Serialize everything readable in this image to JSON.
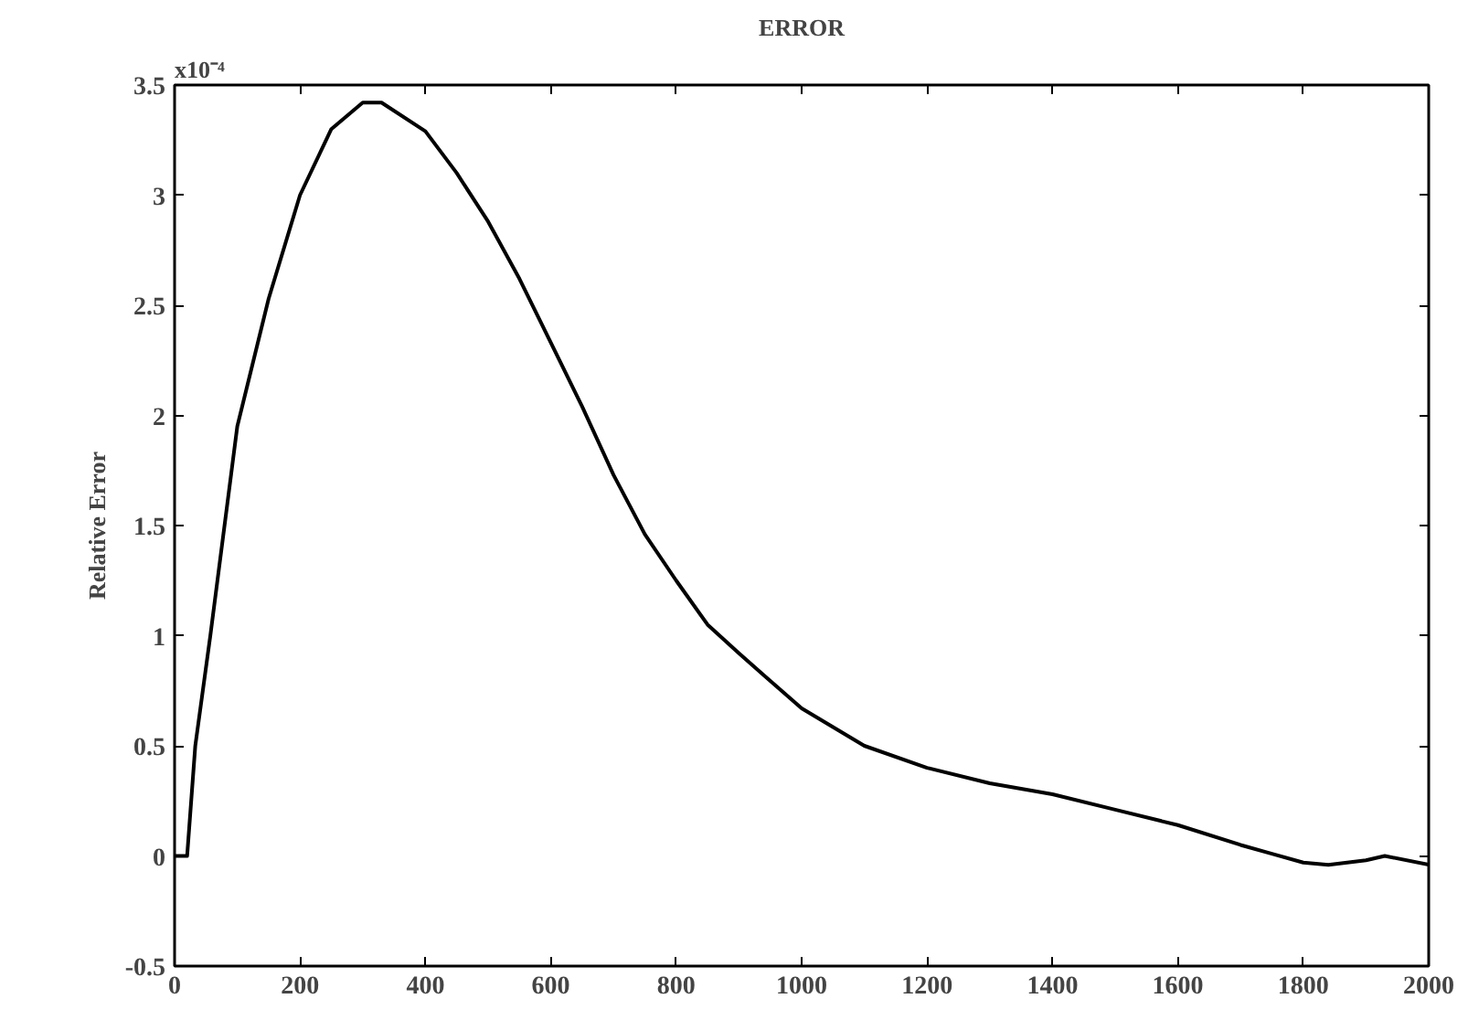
{
  "chart_data": {
    "type": "line",
    "title": "ERROR",
    "ylabel": "Relative Error",
    "annotations": [
      "x10⁻⁴"
    ],
    "x": [
      0,
      10,
      20,
      33,
      57,
      100,
      150,
      200,
      250,
      300,
      330,
      400,
      450,
      500,
      550,
      600,
      650,
      700,
      750,
      800,
      850,
      900,
      940,
      1000,
      1100,
      1200,
      1300,
      1400,
      1500,
      1600,
      1700,
      1750,
      1800,
      1840,
      1900,
      1930,
      2000
    ],
    "series": [
      {
        "color": "#000000",
        "values": [
          0,
          0,
          0,
          0.5,
          1.0,
          1.95,
          2.53,
          3.0,
          3.3,
          3.42,
          3.42,
          3.29,
          3.1,
          2.88,
          2.62,
          2.33,
          2.04,
          1.73,
          1.46,
          1.25,
          1.05,
          0.92,
          0.82,
          0.67,
          0.5,
          0.4,
          0.33,
          0.28,
          0.21,
          0.14,
          0.05,
          0.01,
          -0.03,
          -0.04,
          -0.02,
          0,
          -0.04
        ]
      }
    ],
    "xlim": [
      0,
      2000
    ],
    "xticks": [
      0,
      200,
      400,
      600,
      800,
      1000,
      1200,
      1400,
      1600,
      1800,
      2000
    ],
    "ylim": [
      -0.5,
      3.5
    ],
    "yticks": [
      -0.5,
      0,
      0.5,
      1,
      1.5,
      2,
      2.5,
      3,
      3.5
    ],
    "grid": false,
    "line_style": "solid"
  }
}
